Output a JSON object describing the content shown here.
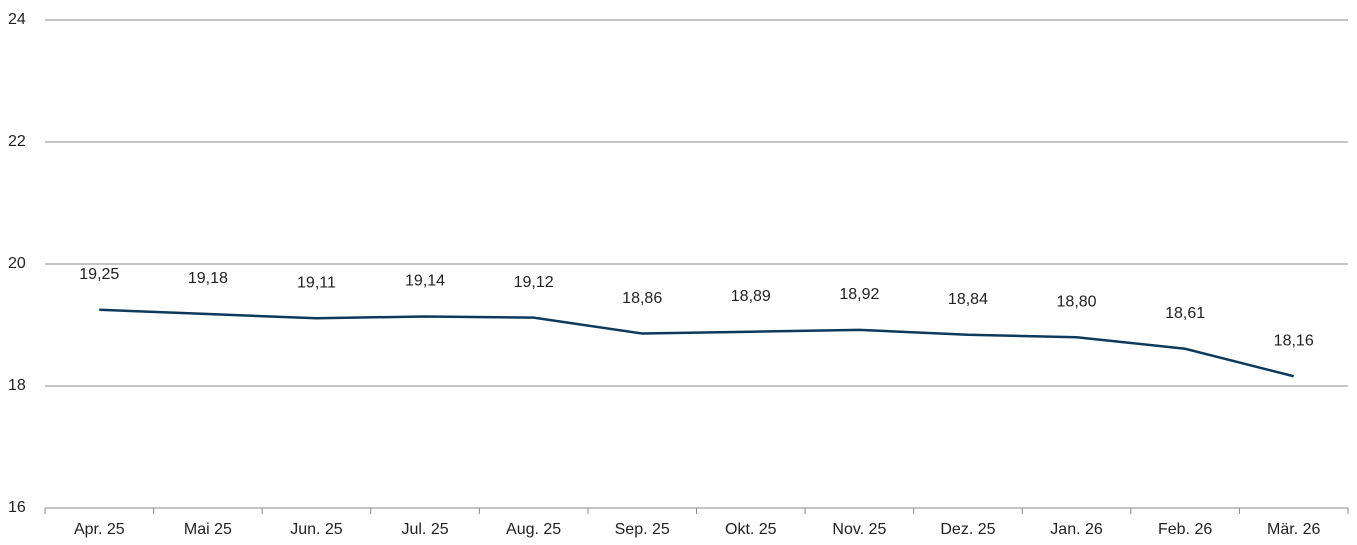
{
  "chart_data": {
    "type": "line",
    "categories": [
      "Apr. 25",
      "Mai 25",
      "Jun. 25",
      "Jul. 25",
      "Aug. 25",
      "Sep. 25",
      "Okt. 25",
      "Nov. 25",
      "Dez. 25",
      "Jan. 26",
      "Feb. 26",
      "Mär. 26"
    ],
    "values": [
      19.25,
      19.18,
      19.11,
      19.14,
      19.12,
      18.86,
      18.89,
      18.92,
      18.84,
      18.8,
      18.61,
      18.16
    ],
    "value_labels": [
      "19,25",
      "19,18",
      "19,11",
      "19,14",
      "19,12",
      "18,86",
      "18,89",
      "18,92",
      "18,84",
      "18,80",
      "18,61",
      "18,16"
    ],
    "color": "#0d3a5c",
    "ylim": [
      16,
      24
    ],
    "yticks": [
      16,
      18,
      20,
      22,
      24
    ],
    "grid": true
  }
}
